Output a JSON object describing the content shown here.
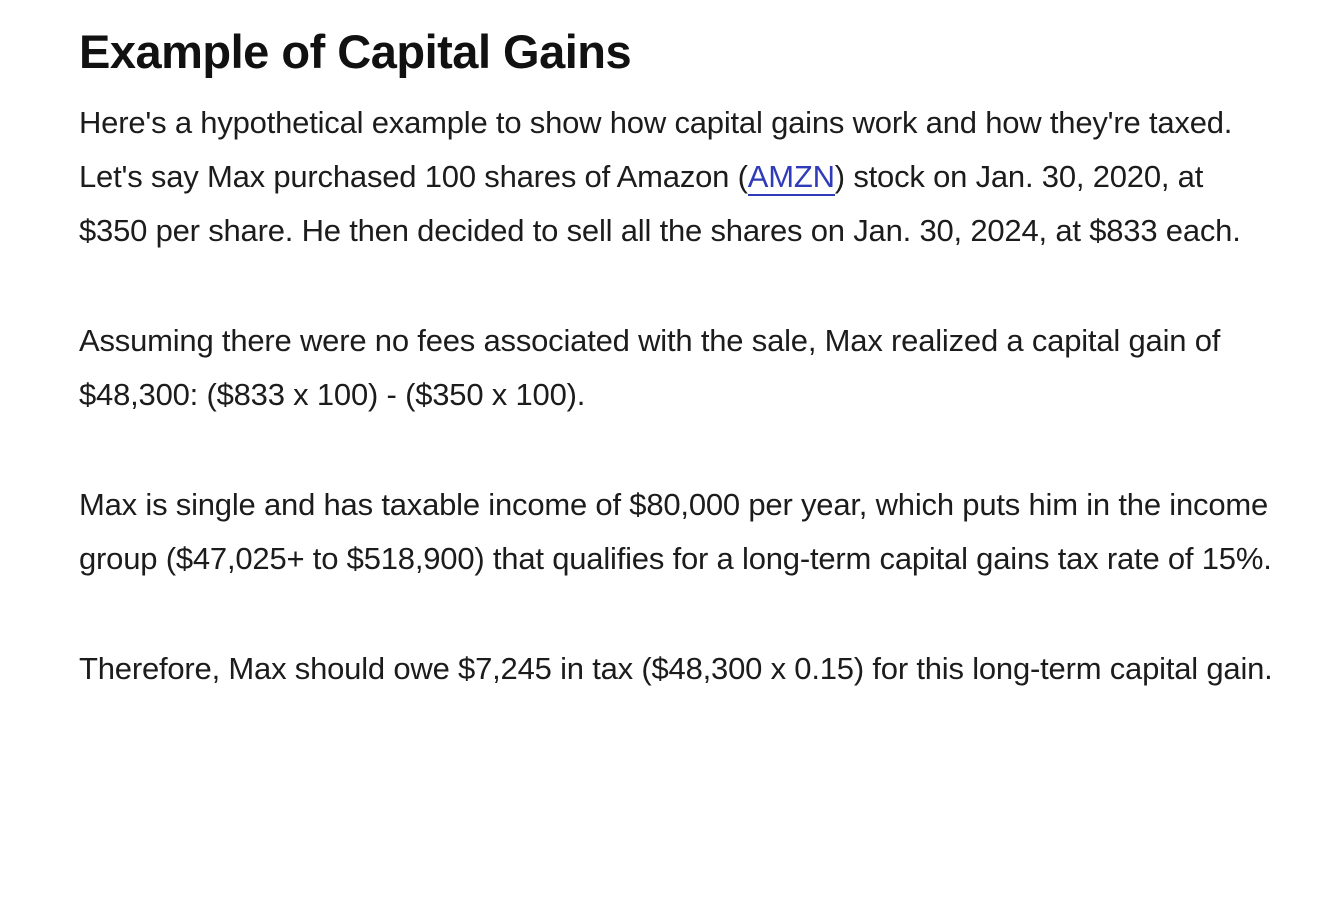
{
  "article": {
    "heading": "Example of Capital Gains",
    "paragraph1": {
      "before_link": "Here's a hypothetical example to show how capital gains work and how they're taxed. Let's say Max purchased 100 shares of Amazon (",
      "link_text": "AMZN",
      "after_link": ") stock on Jan. 30, 2020, at $350 per share. He then decided to sell all the shares on Jan. 30, 2024, at $833 each."
    },
    "paragraph2": "Assuming there were no fees associated with the sale, Max realized a capital gain of $48,300: ($833 x 100) - ($350 x 100).",
    "paragraph3": "Max is single and has taxable income of $80,000 per year, which puts him in the income group ($47,025+ to $518,900) that qualifies for a long-term capital gains tax rate of 15%.",
    "paragraph4": "Therefore, Max should owe $7,245 in tax ($48,300 x 0.15) for this long-term capital gain."
  },
  "colors": {
    "text": "#1c1c1c",
    "link": "#2f3bb8"
  }
}
